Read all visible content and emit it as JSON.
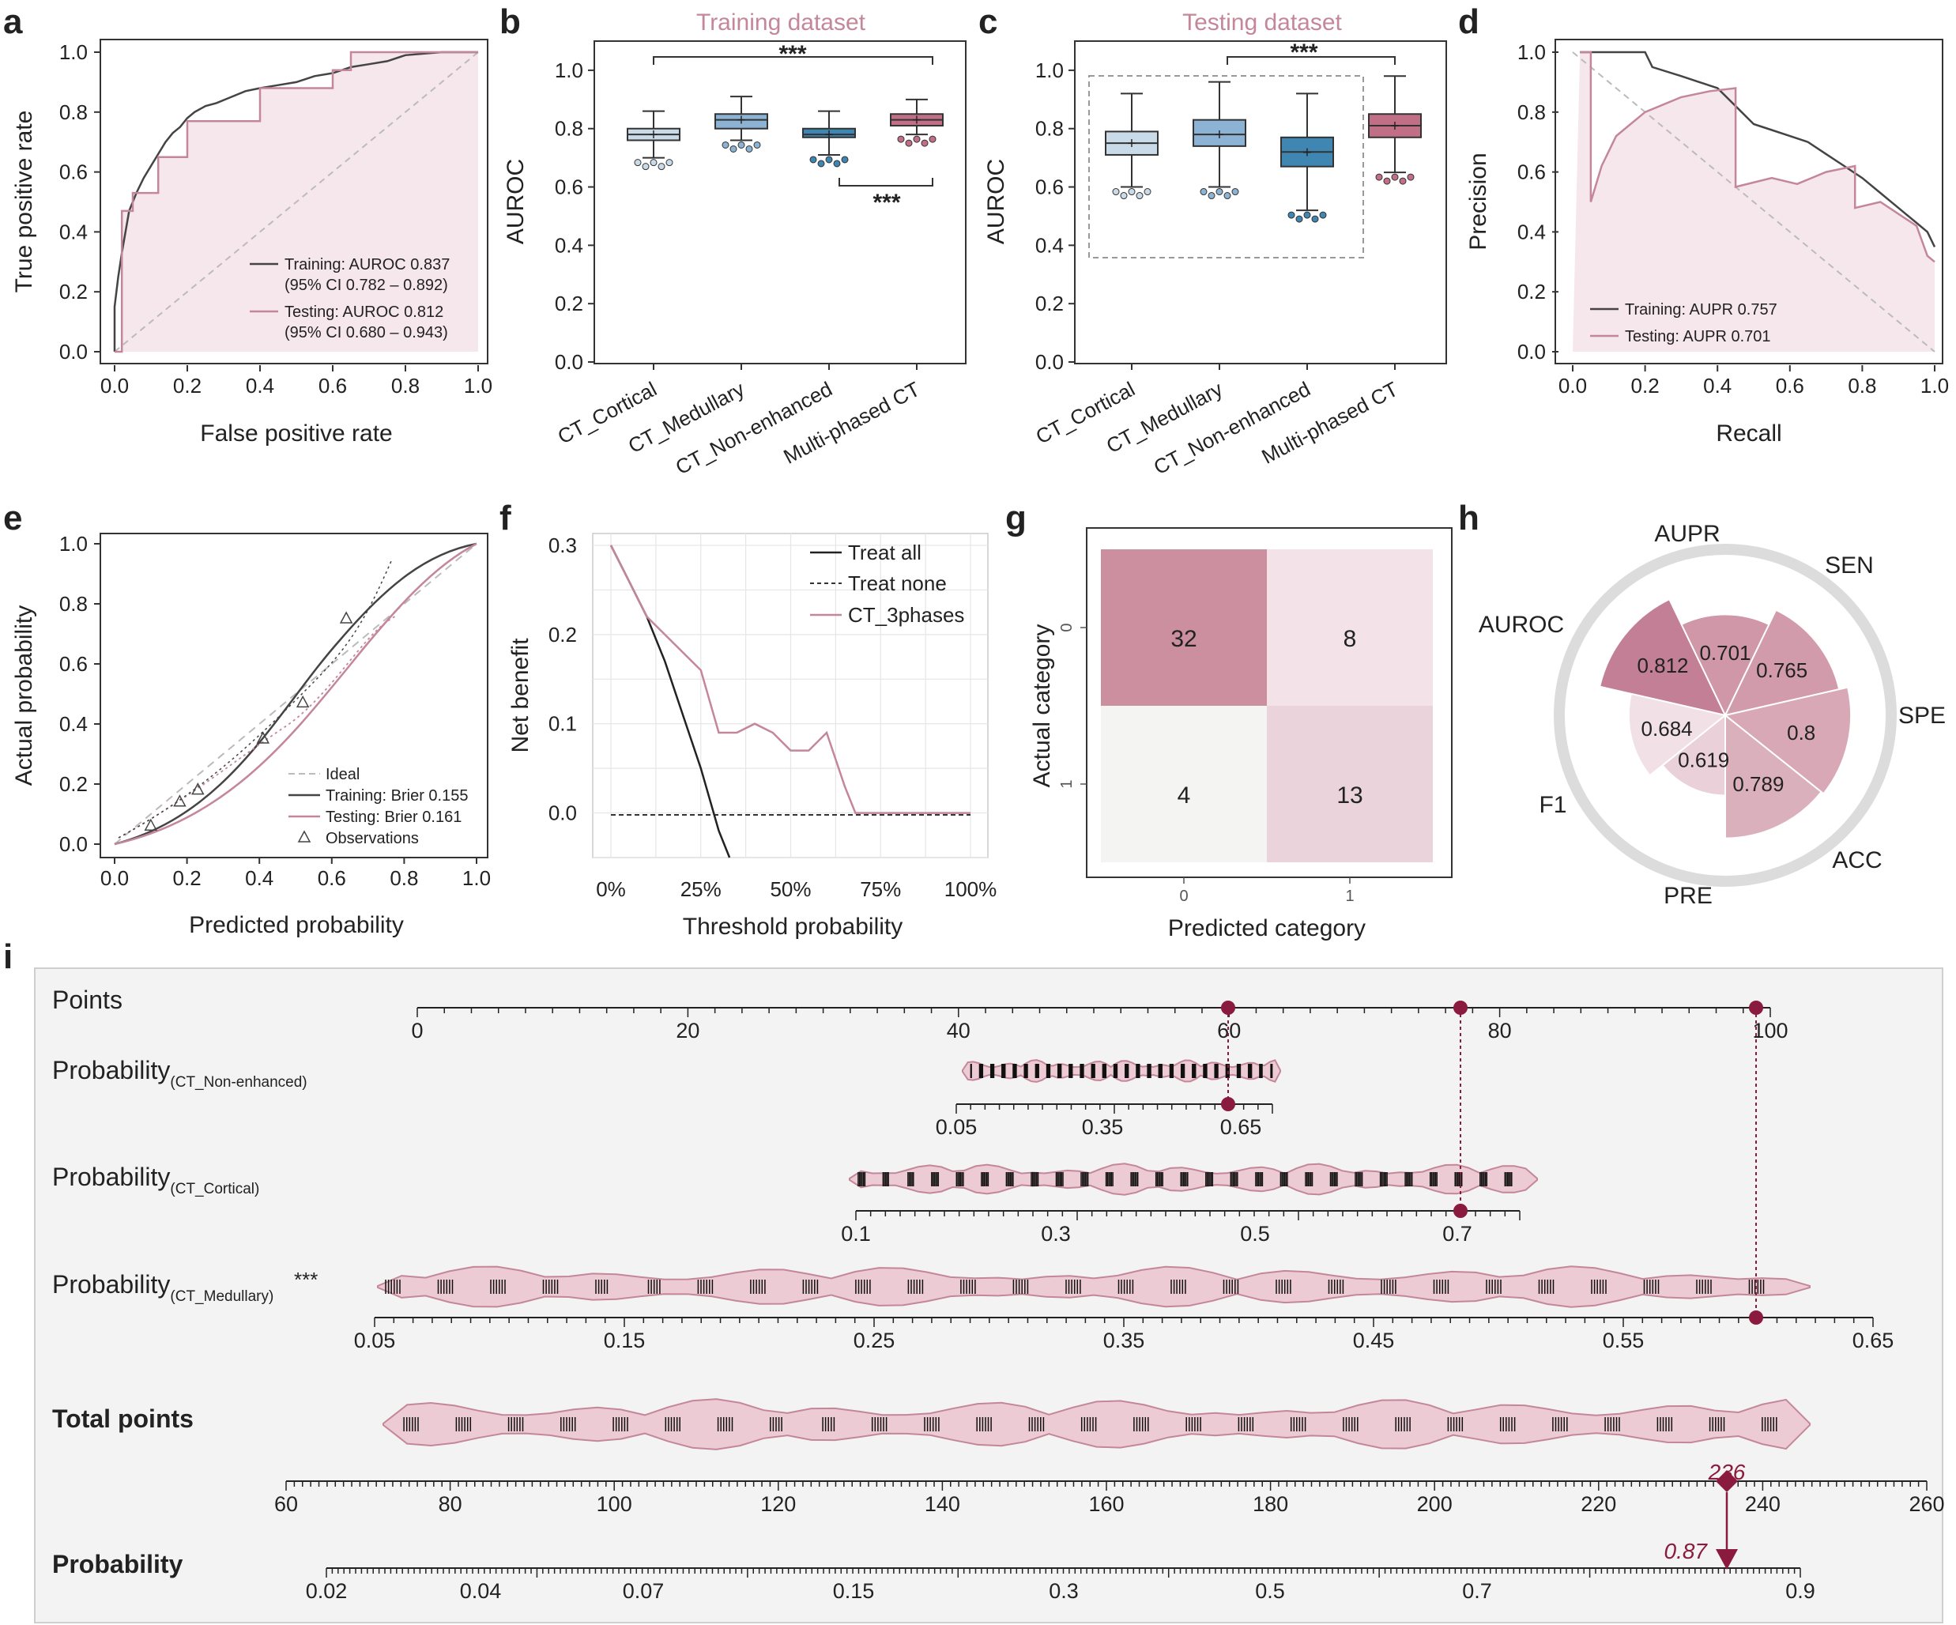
{
  "colors": {
    "pink": "#c4879a",
    "pinkDark": "#b06a82",
    "pinkFill": "#f6e7ec",
    "black": "#333333",
    "dashed": "#bbbbbb",
    "box1": "#c9dbe8",
    "box2": "#8cb3d3",
    "box3": "#3f86b3",
    "box4": "#c06f86",
    "marker": "#8b1a3f",
    "bgPanel": "#f2f3f2"
  },
  "panels": {
    "a": "a",
    "b": "b",
    "c": "c",
    "d": "d",
    "e": "e",
    "f": "f",
    "g": "g",
    "h": "h",
    "i": "i"
  },
  "chart_data": [
    {
      "id": "a",
      "type": "line",
      "xlabel": "False positive rate",
      "ylabel": "True positive rate",
      "xlim": [
        0,
        1
      ],
      "ylim": [
        0,
        1
      ],
      "ticks": [
        "0.0",
        "0.2",
        "0.4",
        "0.6",
        "0.8",
        "1.0"
      ],
      "legend": [
        {
          "name": "Training: AUROC 0.837",
          "ci": "(95% CI 0.782 – 0.892)"
        },
        {
          "name": "Testing: AUROC 0.812",
          "ci": "(95% CI 0.680 – 0.943)"
        }
      ],
      "series": [
        {
          "name": "Training",
          "x": [
            0,
            0,
            0.01,
            0.02,
            0.03,
            0.04,
            0.06,
            0.08,
            0.1,
            0.12,
            0.14,
            0.16,
            0.18,
            0.2,
            0.22,
            0.25,
            0.28,
            0.32,
            0.36,
            0.4,
            0.45,
            0.5,
            0.55,
            0.6,
            0.65,
            0.7,
            0.75,
            0.8,
            0.9,
            1
          ],
          "y": [
            0,
            0.15,
            0.25,
            0.33,
            0.4,
            0.47,
            0.53,
            0.58,
            0.62,
            0.66,
            0.7,
            0.73,
            0.75,
            0.78,
            0.8,
            0.82,
            0.83,
            0.85,
            0.87,
            0.88,
            0.89,
            0.9,
            0.92,
            0.93,
            0.95,
            0.96,
            0.97,
            0.99,
            1,
            1
          ]
        },
        {
          "name": "Testing",
          "x": [
            0,
            0.02,
            0.02,
            0.05,
            0.05,
            0.12,
            0.12,
            0.2,
            0.2,
            0.4,
            0.4,
            0.6,
            0.6,
            0.65,
            0.65,
            0.9,
            0.9,
            1
          ],
          "y": [
            0,
            0,
            0.47,
            0.47,
            0.53,
            0.53,
            0.65,
            0.65,
            0.77,
            0.77,
            0.88,
            0.88,
            0.94,
            0.94,
            1,
            1,
            1,
            1
          ]
        }
      ]
    },
    {
      "id": "b",
      "type": "box",
      "title": "Training dataset",
      "ylabel": "AUROC",
      "ylim": [
        0,
        1.1
      ],
      "ticks": [
        "0.0",
        "0.2",
        "0.4",
        "0.6",
        "0.8",
        "1.0"
      ],
      "categories": [
        "CT_Cortical",
        "CT_Medullary",
        "CT_Non-enhanced",
        "Multi-phased CT"
      ],
      "boxes": [
        {
          "q1": 0.76,
          "med": 0.78,
          "q3": 0.8,
          "lo": 0.7,
          "hi": 0.86,
          "mean": 0.78
        },
        {
          "q1": 0.8,
          "med": 0.83,
          "q3": 0.85,
          "lo": 0.76,
          "hi": 0.91,
          "mean": 0.83
        },
        {
          "q1": 0.77,
          "med": 0.78,
          "q3": 0.8,
          "lo": 0.71,
          "hi": 0.86,
          "mean": 0.78
        },
        {
          "q1": 0.81,
          "med": 0.83,
          "q3": 0.85,
          "lo": 0.78,
          "hi": 0.9,
          "mean": 0.83
        }
      ],
      "sig": [
        "***",
        "***"
      ]
    },
    {
      "id": "c",
      "type": "box",
      "title": "Testing dataset",
      "ylabel": "AUROC",
      "ylim": [
        0,
        1.1
      ],
      "ticks": [
        "0.0",
        "0.2",
        "0.4",
        "0.6",
        "0.8",
        "1.0"
      ],
      "categories": [
        "CT_Cortical",
        "CT_Medullary",
        "CT_Non-enhanced",
        "Multi-phased CT"
      ],
      "boxes": [
        {
          "q1": 0.71,
          "med": 0.75,
          "q3": 0.79,
          "lo": 0.6,
          "hi": 0.92,
          "mean": 0.75
        },
        {
          "q1": 0.74,
          "med": 0.78,
          "q3": 0.83,
          "lo": 0.6,
          "hi": 0.96,
          "mean": 0.78
        },
        {
          "q1": 0.67,
          "med": 0.72,
          "q3": 0.77,
          "lo": 0.52,
          "hi": 0.92,
          "mean": 0.72
        },
        {
          "q1": 0.77,
          "med": 0.81,
          "q3": 0.85,
          "lo": 0.65,
          "hi": 0.98,
          "mean": 0.81
        }
      ],
      "sig": [
        "***"
      ]
    },
    {
      "id": "d",
      "type": "line",
      "xlabel": "Recall",
      "ylabel": "Precision",
      "xlim": [
        0,
        1
      ],
      "ylim": [
        0,
        1
      ],
      "ticks": [
        "0.0",
        "0.2",
        "0.4",
        "0.6",
        "0.8",
        "1.0"
      ],
      "legend": [
        {
          "name": "Training: AUPR 0.757"
        },
        {
          "name": "Testing: AUPR 0.701"
        }
      ],
      "series": [
        {
          "name": "Training",
          "x": [
            0.02,
            0.2,
            0.22,
            0.3,
            0.35,
            0.4,
            0.45,
            0.5,
            0.55,
            0.6,
            0.65,
            0.7,
            0.75,
            0.8,
            0.85,
            0.9,
            0.95,
            0.98,
            1
          ],
          "y": [
            1,
            1,
            0.95,
            0.92,
            0.9,
            0.88,
            0.82,
            0.76,
            0.74,
            0.72,
            0.7,
            0.66,
            0.62,
            0.58,
            0.53,
            0.48,
            0.43,
            0.4,
            0.35
          ]
        },
        {
          "name": "Testing",
          "x": [
            0.02,
            0.05,
            0.05,
            0.08,
            0.12,
            0.2,
            0.3,
            0.38,
            0.45,
            0.45,
            0.55,
            0.62,
            0.7,
            0.78,
            0.78,
            0.85,
            0.95,
            0.98,
            1
          ],
          "y": [
            1,
            1,
            0.5,
            0.62,
            0.72,
            0.8,
            0.85,
            0.87,
            0.88,
            0.55,
            0.58,
            0.56,
            0.6,
            0.62,
            0.48,
            0.5,
            0.42,
            0.32,
            0.3
          ]
        }
      ]
    },
    {
      "id": "e",
      "type": "line",
      "xlabel": "Predicted probability",
      "ylabel": "Actual probability",
      "xlim": [
        0,
        1
      ],
      "ylim": [
        0,
        1
      ],
      "ticks": [
        "0.0",
        "0.2",
        "0.4",
        "0.6",
        "0.8",
        "1.0"
      ],
      "legend": [
        {
          "name": "Ideal"
        },
        {
          "name": "Training: Brier 0.155"
        },
        {
          "name": "Testing: Brier 0.161"
        },
        {
          "name": "Observations"
        }
      ],
      "observations": {
        "x": [
          0.1,
          0.18,
          0.23,
          0.41,
          0.52,
          0.64
        ],
        "y": [
          0.06,
          0.14,
          0.18,
          0.35,
          0.47,
          0.75
        ]
      }
    },
    {
      "id": "f",
      "type": "line",
      "xlabel": "Threshold probability",
      "ylabel": "Net benefit",
      "xlim": [
        0,
        1
      ],
      "ylim": [
        -0.05,
        0.3
      ],
      "xticks": [
        "0%",
        "25%",
        "50%",
        "75%",
        "100%"
      ],
      "yticks": [
        "0.0",
        "0.1",
        "0.2",
        "0.3"
      ],
      "legend": [
        {
          "name": "Treat all"
        },
        {
          "name": "Treat none"
        },
        {
          "name": "CT_3phases"
        }
      ],
      "series": [
        {
          "name": "Treat all",
          "x": [
            0,
            0.05,
            0.1,
            0.15,
            0.2,
            0.25,
            0.3,
            0.33
          ],
          "y": [
            0.3,
            0.26,
            0.22,
            0.17,
            0.11,
            0.05,
            -0.02,
            -0.05
          ]
        },
        {
          "name": "CT_3phases",
          "x": [
            0,
            0.05,
            0.1,
            0.15,
            0.2,
            0.25,
            0.3,
            0.35,
            0.4,
            0.45,
            0.5,
            0.55,
            0.6,
            0.65,
            0.68,
            0.7,
            0.75,
            1
          ],
          "y": [
            0.3,
            0.26,
            0.22,
            0.2,
            0.18,
            0.16,
            0.09,
            0.09,
            0.1,
            0.09,
            0.07,
            0.07,
            0.09,
            0.03,
            0,
            0,
            0,
            0
          ]
        }
      ]
    },
    {
      "id": "g",
      "type": "heatmap",
      "xlabel": "Predicted category",
      "ylabel": "Actual category",
      "xticks": [
        "0",
        "1"
      ],
      "yticks": [
        "0",
        "1"
      ],
      "values": [
        [
          32,
          8
        ],
        [
          4,
          13
        ]
      ]
    },
    {
      "id": "h",
      "type": "radial-bar",
      "labels": [
        "AUROC",
        "AUPR",
        "SEN",
        "SPE",
        "ACC",
        "PRE",
        "F1"
      ],
      "values": [
        0.812,
        0.701,
        0.765,
        0.8,
        0.789,
        0.619,
        0.684
      ],
      "valueLabels": [
        "0.812",
        "0.701",
        "0.765",
        "0.8",
        "0.789",
        "0.619",
        "0.684"
      ]
    },
    {
      "id": "i",
      "type": "nomogram",
      "rows": {
        "points": "Points",
        "nonEnh": "Probability",
        "nonEnhSub": "(CT_Non-enhanced)",
        "cort": "Probability",
        "cortSub": "(CT_Cortical)",
        "med": "Probability",
        "medSub": "(CT_Medullary)",
        "medSig": "***",
        "total": "Total points",
        "prob": "Probability"
      },
      "pointsTicks": [
        "0",
        "20",
        "40",
        "60",
        "80",
        "100"
      ],
      "nonEnhTicks": [
        "0.05",
        "0.35",
        "0.65"
      ],
      "cortTicks": [
        "0.1",
        "0.3",
        "0.5",
        "0.7"
      ],
      "medTicks": [
        "0.05",
        "0.15",
        "0.25",
        "0.35",
        "0.45",
        "0.55",
        "0.65"
      ],
      "totalTicks": [
        "60",
        "80",
        "100",
        "120",
        "140",
        "160",
        "180",
        "200",
        "220",
        "240",
        "260"
      ],
      "probTicks": [
        "0.02",
        "0.04",
        "0.07",
        "0.15",
        "0.3",
        "0.5",
        "0.7",
        "0.9"
      ],
      "selected": {
        "points": [
          60,
          77,
          99
        ],
        "total": "236",
        "probability": "0.87"
      }
    }
  ]
}
